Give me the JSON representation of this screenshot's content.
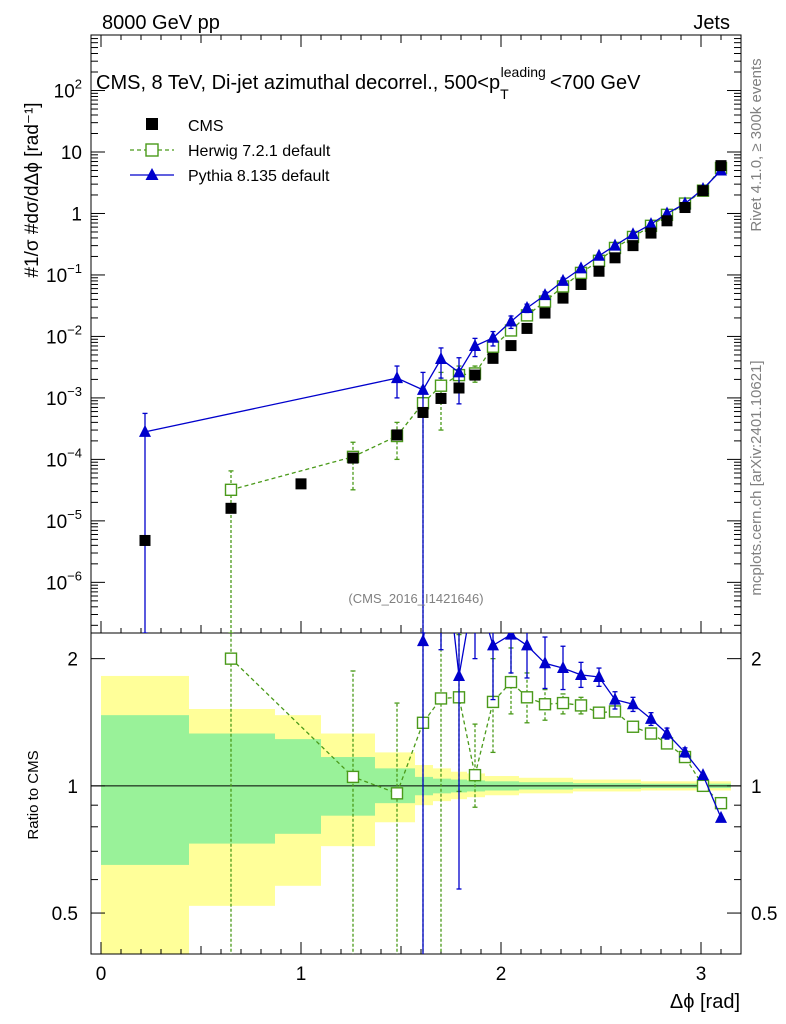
{
  "header": {
    "left": "8000 GeV pp",
    "right": "Jets"
  },
  "side_text": {
    "rivet": "Rivet 4.1.0, ≥ 300k events",
    "mcplots": "mcplots.cern.ch [arXiv:2401.10621]"
  },
  "chart_data": {
    "type": "scatter",
    "title": "CMS, 8 TeV, Di-jet azimuthal decorrel., 500<p_T^leading<700 GeV",
    "title_parts": {
      "main": "CMS, 8 TeV, Di-jet azimuthal decorrel., 500<p",
      "sub": "T",
      "sup": "leading",
      "tail": "<700 GeV"
    },
    "analysis_id": "(CMS_2016_I1421646)",
    "xlabel": "Δϕ [rad]",
    "ylabel_upper": "#1/σ #dσ/dΔϕ [rad⁻¹]",
    "ylabel_ratio": "Ratio to CMS",
    "xlim": [
      -0.05,
      3.2
    ],
    "ylim_upper": [
      1.5e-07,
      800
    ],
    "ylim_ratio": [
      0.4,
      2.3
    ],
    "ratio_ticks": [
      "0.5",
      "1",
      "2"
    ],
    "x_ticks": [
      "0",
      "1",
      "2",
      "3"
    ],
    "y_ticks_upper": [
      {
        "base": "10",
        "exp": "−6"
      },
      {
        "base": "10",
        "exp": "−5"
      },
      {
        "base": "10",
        "exp": "−4"
      },
      {
        "base": "10",
        "exp": "−3"
      },
      {
        "base": "10",
        "exp": "−2"
      },
      {
        "base": "10",
        "exp": "−1"
      },
      {
        "base": "1",
        "exp": ""
      },
      {
        "base": "10",
        "exp": ""
      },
      {
        "base": "10",
        "exp": "2"
      }
    ],
    "legend": {
      "position": "top-left",
      "entries": [
        "CMS",
        "Herwig 7.2.1 default",
        "Pythia 8.135 default"
      ]
    },
    "series": [
      {
        "name": "CMS",
        "color": "#000000",
        "marker": "filled-square",
        "points": [
          {
            "x": 0.22,
            "y": 4.8e-06
          },
          {
            "x": 0.65,
            "y": 1.6e-05
          },
          {
            "x": 1.0,
            "y": 4e-05
          },
          {
            "x": 1.26,
            "y": 0.000105
          },
          {
            "x": 1.48,
            "y": 0.00025
          },
          {
            "x": 1.61,
            "y": 0.00058
          },
          {
            "x": 1.7,
            "y": 0.00098
          },
          {
            "x": 1.79,
            "y": 0.00145
          },
          {
            "x": 1.87,
            "y": 0.00235
          },
          {
            "x": 1.96,
            "y": 0.0044
          },
          {
            "x": 2.05,
            "y": 0.0071
          },
          {
            "x": 2.13,
            "y": 0.0135
          },
          {
            "x": 2.22,
            "y": 0.024
          },
          {
            "x": 2.31,
            "y": 0.042
          },
          {
            "x": 2.4,
            "y": 0.07
          },
          {
            "x": 2.49,
            "y": 0.115
          },
          {
            "x": 2.57,
            "y": 0.19
          },
          {
            "x": 2.66,
            "y": 0.3
          },
          {
            "x": 2.75,
            "y": 0.48
          },
          {
            "x": 2.83,
            "y": 0.76
          },
          {
            "x": 2.92,
            "y": 1.25
          },
          {
            "x": 3.01,
            "y": 2.35
          },
          {
            "x": 3.1,
            "y": 6.0
          }
        ]
      },
      {
        "name": "Herwig 7.2.1 default",
        "color": "#4a9a1a",
        "marker": "open-square",
        "line": "dashed",
        "points": [
          {
            "x": 0.65,
            "y": 3.2e-05,
            "ylo": 1.5e-07,
            "yhi": 6.5e-05
          },
          {
            "x": 1.26,
            "y": 0.00011,
            "ylo": 3.2e-05,
            "yhi": 0.00019
          },
          {
            "x": 1.48,
            "y": 0.00024,
            "ylo": 0.0001,
            "yhi": 0.0004
          },
          {
            "x": 1.61,
            "y": 0.00082,
            "ylo": 1.5e-07,
            "yhi": 0.0015
          },
          {
            "x": 1.7,
            "y": 0.00158,
            "ylo": 0.0003,
            "yhi": 0.0026
          },
          {
            "x": 1.79,
            "y": 0.00235,
            "ylo": 0.0014,
            "yhi": 0.0033
          },
          {
            "x": 1.87,
            "y": 0.0025,
            "ylo": 0.0018,
            "yhi": 0.0033
          },
          {
            "x": 1.96,
            "y": 0.0068,
            "ylo": 0.0052,
            "yhi": 0.0086
          },
          {
            "x": 2.05,
            "y": 0.0125,
            "ylo": 0.0105,
            "yhi": 0.015
          },
          {
            "x": 2.13,
            "y": 0.022,
            "ylo": 0.019,
            "yhi": 0.025
          },
          {
            "x": 2.22,
            "y": 0.037,
            "ylo": 0.034,
            "yhi": 0.04
          },
          {
            "x": 2.31,
            "y": 0.065,
            "ylo": 0.061,
            "yhi": 0.069
          },
          {
            "x": 2.4,
            "y": 0.108,
            "ylo": 0.103,
            "yhi": 0.113
          },
          {
            "x": 2.49,
            "y": 0.17
          },
          {
            "x": 2.57,
            "y": 0.275
          },
          {
            "x": 2.66,
            "y": 0.415
          },
          {
            "x": 2.75,
            "y": 0.63
          },
          {
            "x": 2.83,
            "y": 0.95
          },
          {
            "x": 2.92,
            "y": 1.45
          },
          {
            "x": 3.01,
            "y": 2.35
          },
          {
            "x": 3.1,
            "y": 5.5
          }
        ]
      },
      {
        "name": "Pythia 8.135 default",
        "color": "#0000cc",
        "marker": "filled-triangle",
        "line": "solid",
        "points": [
          {
            "x": 0.22,
            "y": 0.00028,
            "ylo": 1.5e-07,
            "yhi": 0.00056
          },
          {
            "x": 1.48,
            "y": 0.0021,
            "ylo": 0.001,
            "yhi": 0.0033
          },
          {
            "x": 1.61,
            "y": 0.00135,
            "ylo": 1.5e-07,
            "yhi": 0.0026
          },
          {
            "x": 1.7,
            "y": 0.0043,
            "ylo": 0.0021,
            "yhi": 0.0065
          },
          {
            "x": 1.79,
            "y": 0.0026,
            "ylo": 0.0008,
            "yhi": 0.0045
          },
          {
            "x": 1.87,
            "y": 0.007,
            "ylo": 0.0047,
            "yhi": 0.0093
          },
          {
            "x": 1.96,
            "y": 0.0095,
            "ylo": 0.007,
            "yhi": 0.012
          },
          {
            "x": 2.05,
            "y": 0.0175,
            "ylo": 0.0135,
            "yhi": 0.0215
          },
          {
            "x": 2.13,
            "y": 0.029,
            "ylo": 0.0245,
            "yhi": 0.0335
          },
          {
            "x": 2.22,
            "y": 0.047,
            "ylo": 0.041,
            "yhi": 0.053
          },
          {
            "x": 2.31,
            "y": 0.08,
            "ylo": 0.071,
            "yhi": 0.089
          },
          {
            "x": 2.4,
            "y": 0.128
          },
          {
            "x": 2.49,
            "y": 0.205
          },
          {
            "x": 2.57,
            "y": 0.3
          },
          {
            "x": 2.66,
            "y": 0.46
          },
          {
            "x": 2.75,
            "y": 0.67
          },
          {
            "x": 2.83,
            "y": 1.0
          },
          {
            "x": 2.92,
            "y": 1.45
          },
          {
            "x": 3.01,
            "y": 2.5
          },
          {
            "x": 3.1,
            "y": 5.0
          }
        ]
      }
    ],
    "ratio_bands": [
      {
        "x0": 0.0,
        "x1": 0.44,
        "yellow": [
          0.4,
          1.82
        ],
        "green": [
          0.65,
          1.47
        ]
      },
      {
        "x0": 0.44,
        "x1": 0.87,
        "yellow": [
          0.52,
          1.52
        ],
        "green": [
          0.73,
          1.33
        ]
      },
      {
        "x0": 0.87,
        "x1": 1.1,
        "yellow": [
          0.58,
          1.47
        ],
        "green": [
          0.77,
          1.29
        ]
      },
      {
        "x0": 1.1,
        "x1": 1.37,
        "yellow": [
          0.72,
          1.33
        ],
        "green": [
          0.85,
          1.17
        ]
      },
      {
        "x0": 1.37,
        "x1": 1.57,
        "yellow": [
          0.82,
          1.2
        ],
        "green": [
          0.91,
          1.1
        ]
      },
      {
        "x0": 1.57,
        "x1": 1.66,
        "yellow": [
          0.9,
          1.12
        ],
        "green": [
          0.95,
          1.05
        ]
      },
      {
        "x0": 1.66,
        "x1": 1.75,
        "yellow": [
          0.92,
          1.1
        ],
        "green": [
          0.96,
          1.04
        ]
      },
      {
        "x0": 1.75,
        "x1": 1.83,
        "yellow": [
          0.93,
          1.08
        ],
        "green": [
          0.965,
          1.035
        ]
      },
      {
        "x0": 1.83,
        "x1": 1.92,
        "yellow": [
          0.94,
          1.07
        ],
        "green": [
          0.97,
          1.03
        ]
      },
      {
        "x0": 1.92,
        "x1": 2.09,
        "yellow": [
          0.95,
          1.055
        ],
        "green": [
          0.975,
          1.025
        ]
      },
      {
        "x0": 2.09,
        "x1": 2.36,
        "yellow": [
          0.96,
          1.045
        ],
        "green": [
          0.98,
          1.02
        ]
      },
      {
        "x0": 2.36,
        "x1": 2.7,
        "yellow": [
          0.97,
          1.035
        ],
        "green": [
          0.985,
          1.015
        ]
      },
      {
        "x0": 2.7,
        "x1": 3.15,
        "yellow": [
          0.975,
          1.025
        ],
        "green": [
          0.988,
          1.012
        ]
      }
    ],
    "ratio_series": [
      {
        "name": "Herwig 7.2.1 default",
        "color": "#4a9a1a",
        "marker": "open-square",
        "line": "dashed",
        "points": [
          {
            "x": 0.65,
            "y": 2.0,
            "ylo": 0.3,
            "yhi": 3.0
          },
          {
            "x": 1.26,
            "y": 1.05,
            "ylo": 0.3,
            "yhi": 1.87
          },
          {
            "x": 1.48,
            "y": 0.96,
            "ylo": 0.3,
            "yhi": 1.57
          },
          {
            "x": 1.61,
            "y": 1.41,
            "ylo": 0.3,
            "yhi": 2.5
          },
          {
            "x": 1.7,
            "y": 1.61,
            "ylo": 0.3,
            "yhi": 2.65
          },
          {
            "x": 1.79,
            "y": 1.62,
            "ylo": 0.97,
            "yhi": 2.28
          },
          {
            "x": 1.87,
            "y": 1.06,
            "ylo": 0.89,
            "yhi": 1.4
          },
          {
            "x": 1.96,
            "y": 1.58,
            "ylo": 1.2,
            "yhi": 2.0
          },
          {
            "x": 2.05,
            "y": 1.76,
            "ylo": 1.48,
            "yhi": 2.12
          },
          {
            "x": 2.13,
            "y": 1.62,
            "ylo": 1.41,
            "yhi": 1.85
          },
          {
            "x": 2.22,
            "y": 1.56,
            "ylo": 1.43,
            "yhi": 1.69
          },
          {
            "x": 2.31,
            "y": 1.57,
            "ylo": 1.48,
            "yhi": 1.65
          },
          {
            "x": 2.4,
            "y": 1.55,
            "ylo": 1.48,
            "yhi": 1.62
          },
          {
            "x": 2.49,
            "y": 1.49,
            "ylo": 1.45,
            "yhi": 1.53
          },
          {
            "x": 2.57,
            "y": 1.5
          },
          {
            "x": 2.66,
            "y": 1.38
          },
          {
            "x": 2.75,
            "y": 1.33
          },
          {
            "x": 2.83,
            "y": 1.26
          },
          {
            "x": 2.92,
            "y": 1.17
          },
          {
            "x": 3.01,
            "y": 1.0
          },
          {
            "x": 3.1,
            "y": 0.91
          }
        ]
      },
      {
        "name": "Pythia 8.135 default",
        "color": "#0000cc",
        "marker": "filled-triangle",
        "line": "solid",
        "points": [
          {
            "x": 1.61,
            "y": 2.2,
            "ylo": 0.3,
            "yhi": 4.2
          },
          {
            "x": 1.7,
            "y": 4.4,
            "ylo": 2.1,
            "yhi": 6.6
          },
          {
            "x": 1.79,
            "y": 1.82,
            "ylo": 0.57,
            "yhi": 3.1
          },
          {
            "x": 1.87,
            "y": 3.0,
            "ylo": 2.0,
            "yhi": 4.0
          },
          {
            "x": 1.96,
            "y": 2.15,
            "ylo": 1.6,
            "yhi": 2.75
          },
          {
            "x": 2.05,
            "y": 2.28,
            "ylo": 1.85,
            "yhi": 2.85
          },
          {
            "x": 2.13,
            "y": 2.15,
            "ylo": 1.8,
            "yhi": 2.55
          },
          {
            "x": 2.22,
            "y": 1.95,
            "ylo": 1.7,
            "yhi": 2.25
          },
          {
            "x": 2.31,
            "y": 1.9,
            "ylo": 1.69,
            "yhi": 2.14
          },
          {
            "x": 2.4,
            "y": 1.83,
            "ylo": 1.71,
            "yhi": 1.96
          },
          {
            "x": 2.49,
            "y": 1.81,
            "ylo": 1.72,
            "yhi": 1.9
          },
          {
            "x": 2.57,
            "y": 1.6,
            "ylo": 1.52,
            "yhi": 1.67
          },
          {
            "x": 2.66,
            "y": 1.56,
            "ylo": 1.5,
            "yhi": 1.62
          },
          {
            "x": 2.75,
            "y": 1.44,
            "ylo": 1.39,
            "yhi": 1.49
          },
          {
            "x": 2.83,
            "y": 1.33,
            "ylo": 1.29,
            "yhi": 1.37
          },
          {
            "x": 2.92,
            "y": 1.2,
            "ylo": 1.17,
            "yhi": 1.23
          },
          {
            "x": 3.01,
            "y": 1.06
          },
          {
            "x": 3.1,
            "y": 0.84
          }
        ]
      }
    ]
  }
}
